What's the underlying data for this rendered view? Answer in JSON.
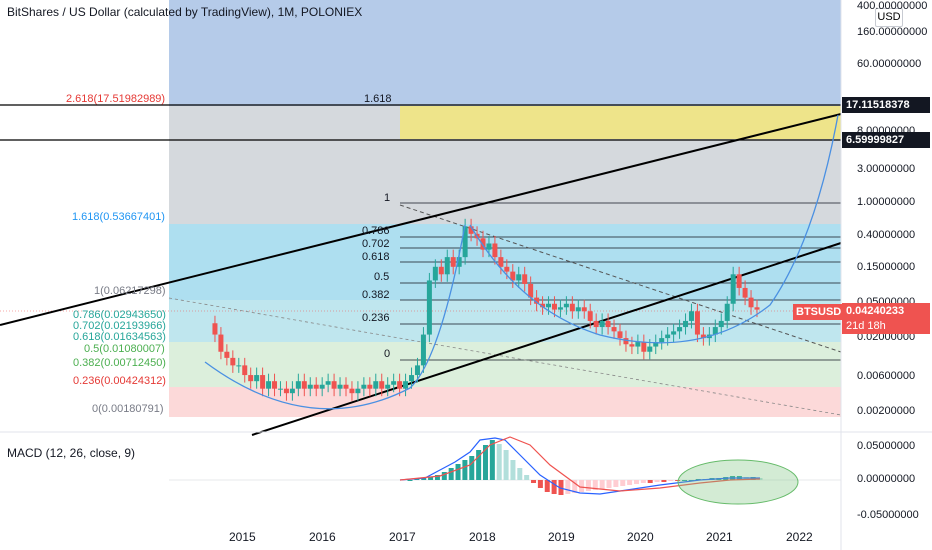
{
  "title": "BitShares / US Dollar (calculated by TradingView), 1M, POLONIEX",
  "macd_label": "MACD (12, 26, close, 9)",
  "currency": "USD",
  "symbol": "BTSUSD",
  "price_tag": {
    "price": "0.04240233",
    "countdown": "21d 18h"
  },
  "line_tags": {
    "upper": "17.11518378",
    "lower": "6.59999827"
  },
  "y_axis_labels": [
    "400.00000000",
    "160.00000000",
    "60.00000000",
    "8.00000000",
    "3.00000000",
    "1.00000000",
    "0.40000000",
    "0.15000000",
    "0.05000000",
    "0.02000000",
    "0.00600000",
    "0.00200000"
  ],
  "macd_axis_labels": [
    "0.05000000",
    "0.00000000",
    "-0.05000000"
  ],
  "x_labels": [
    "2015",
    "2016",
    "2017",
    "2018",
    "2019",
    "2020",
    "2021",
    "2022"
  ],
  "fib_left": [
    {
      "text": "2.618(17.51982989)",
      "color": "#e53935"
    },
    {
      "text": "1.618(0.53667401)",
      "color": "#2196f3"
    },
    {
      "text": "1(0.06217298)",
      "color": "#787b86"
    },
    {
      "text": "0.786(0.02943650)",
      "color": "#26a69a"
    },
    {
      "text": "0.702(0.02193966)",
      "color": "#26a69a"
    },
    {
      "text": "0.618(0.01634563)",
      "color": "#26a69a"
    },
    {
      "text": "0.5(0.01080007)",
      "color": "#4caf50"
    },
    {
      "text": "0.382(0.00712450)",
      "color": "#4caf50"
    },
    {
      "text": "0.236(0.00424312)",
      "color": "#e53935"
    },
    {
      "text": "0(0.00180791)",
      "color": "#787b86"
    }
  ],
  "fib_center": [
    "1.618",
    "1",
    "0.786",
    "0.702",
    "0.618",
    "0.5",
    "0.382",
    "0.236",
    "0"
  ],
  "colors": {
    "up": "#26a69a",
    "down": "#ef5350",
    "fib_blue": "#4fc3f7",
    "fib_green": "#a5d6a7",
    "fib_red": "#ffcdd2",
    "target_yellow": "#f0e68c",
    "top_blue": "#b0c8ea"
  },
  "chart_data": {
    "type": "candlestick",
    "title": "BitShares / US Dollar (calculated by TradingView), 1M, POLONIEX",
    "y_scale": "log",
    "x_range": [
      "2014-07",
      "2022-08"
    ],
    "candles_approx": [
      {
        "t": "2014-08",
        "o": 0.02,
        "h": 0.03,
        "l": 0.015,
        "c": 0.028
      },
      {
        "t": "2015-06",
        "o": 0.008,
        "h": 0.01,
        "l": 0.005,
        "c": 0.005
      },
      {
        "t": "2016-06",
        "o": 0.004,
        "h": 0.006,
        "l": 0.003,
        "c": 0.004
      },
      {
        "t": "2017-06",
        "o": 0.02,
        "h": 0.2,
        "l": 0.015,
        "c": 0.15
      },
      {
        "t": "2018-01",
        "o": 0.6,
        "h": 1.0,
        "l": 0.3,
        "c": 0.5
      },
      {
        "t": "2019-01",
        "o": 0.05,
        "h": 0.08,
        "l": 0.03,
        "c": 0.04
      },
      {
        "t": "2020-03",
        "o": 0.015,
        "h": 0.02,
        "l": 0.008,
        "c": 0.012
      },
      {
        "t": "2021-05",
        "o": 0.12,
        "h": 0.16,
        "l": 0.04,
        "c": 0.06
      },
      {
        "t": "2021-07",
        "o": 0.05,
        "h": 0.06,
        "l": 0.035,
        "c": 0.0424
      }
    ],
    "last_price": 0.04240233,
    "macd": {
      "fast": 12,
      "slow": 26,
      "signal": 9,
      "source": "close"
    }
  }
}
